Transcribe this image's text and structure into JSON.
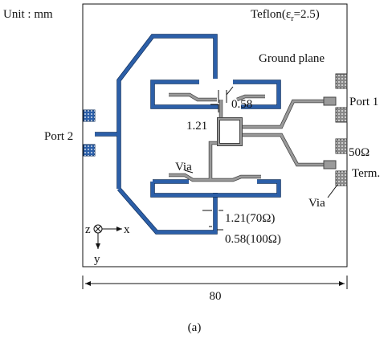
{
  "unit": "Unit : mm",
  "substrate": {
    "prefix": "Teflon(ε",
    "subscript": "r",
    "suffix": "=2.5)"
  },
  "labels": {
    "ground_plane": "Ground plane",
    "port1": "Port 1",
    "port2": "Port 2",
    "dim_058_top": "0.58",
    "dim_121_top": "1.21",
    "via_left": "Via",
    "term_ohm": "50Ω",
    "term": "Term.",
    "via_right": "Via",
    "dim_121_bottom": "1.21(70Ω)",
    "dim_058_bottom": "0.58(100Ω)"
  },
  "axes": {
    "z": "z",
    "x": "x",
    "y": "y"
  },
  "width_dim": "80",
  "caption": "(a)"
}
